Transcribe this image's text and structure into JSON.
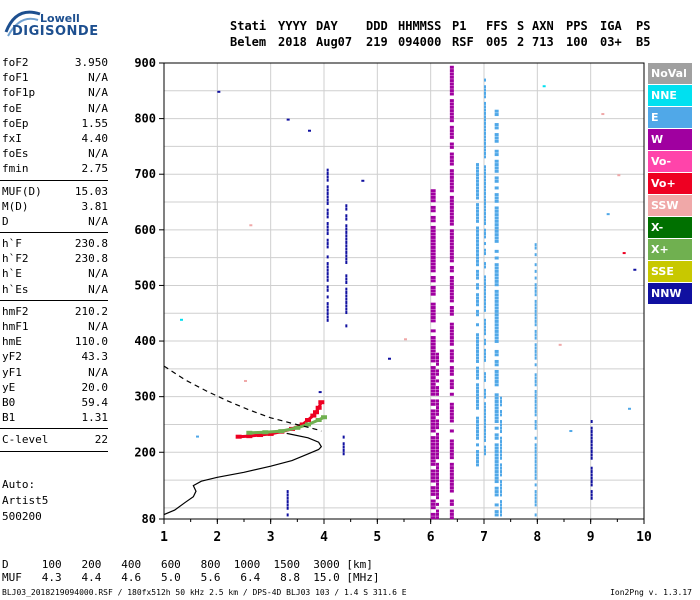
{
  "logo": {
    "top": "Lowell",
    "bottom": "DIGISONDE"
  },
  "header": {
    "labels": [
      "Stati",
      "YYYY",
      "DAY",
      "DDD",
      "HHMMSS",
      "P1",
      "FFS",
      "S",
      "AXN",
      "PPS",
      "IGA",
      "PS"
    ],
    "values": [
      "Belem",
      "2018",
      "Aug07",
      "219",
      "094000",
      "RSF",
      "005",
      "2",
      "713",
      "100",
      "03+",
      "B5"
    ]
  },
  "params_groups": [
    [
      [
        "foF2",
        "3.950"
      ],
      [
        "foF1",
        "N/A"
      ],
      [
        "foF1p",
        "N/A"
      ],
      [
        "foE",
        "N/A"
      ],
      [
        "foEp",
        "1.55"
      ],
      [
        "fxI",
        "4.40"
      ],
      [
        "foEs",
        "N/A"
      ],
      [
        "fmin",
        "2.75"
      ]
    ],
    [
      [
        "MUF(D)",
        "15.03"
      ],
      [
        "M(D)",
        "3.81"
      ],
      [
        "D",
        "N/A"
      ]
    ],
    [
      [
        "h`F",
        "230.8"
      ],
      [
        "h`F2",
        "230.8"
      ],
      [
        "h`E",
        "N/A"
      ],
      [
        "h`Es",
        "N/A"
      ]
    ],
    [
      [
        "hmF2",
        "210.2"
      ],
      [
        "hmF1",
        "N/A"
      ],
      [
        "hmE",
        "110.0"
      ],
      [
        "yF2",
        "43.3"
      ],
      [
        "yF1",
        "N/A"
      ],
      [
        "yE",
        "20.0"
      ],
      [
        "B0",
        "59.4"
      ],
      [
        "B1",
        "1.31"
      ]
    ],
    [
      [
        "C-level",
        "22"
      ]
    ]
  ],
  "auto": [
    "Auto:",
    "Artist5",
    "500200"
  ],
  "legend": [
    {
      "label": "NoVal",
      "color": "#a0a0a0"
    },
    {
      "label": "NNE",
      "color": "#00e0f0"
    },
    {
      "label": "E",
      "color": "#50a8e8"
    },
    {
      "label": "W",
      "color": "#a000a0"
    },
    {
      "label": "Vo-",
      "color": "#ff44aa"
    },
    {
      "label": "Vo+",
      "color": "#ee0022"
    },
    {
      "label": "SSW",
      "color": "#f0a8a8"
    },
    {
      "label": "X-",
      "color": "#007000"
    },
    {
      "label": "X+",
      "color": "#70b050"
    },
    {
      "label": "SSE",
      "color": "#c8c800"
    },
    {
      "label": "NNW",
      "color": "#1010a0"
    }
  ],
  "bottom_table": {
    "d_label": "D",
    "d_values": [
      "100",
      "200",
      "400",
      "600",
      "800",
      "1000",
      "1500",
      "3000"
    ],
    "d_unit": "[km]",
    "muf_label": "MUF",
    "muf_values": [
      "4.3",
      "4.4",
      "4.6",
      "5.0",
      "5.6",
      "6.4",
      "8.8",
      "15.0"
    ],
    "muf_unit": "[MHz]"
  },
  "footer": "BLJ03_2018219094000.RSF / 180fx512h 50 kHz 2.5 km / DPS-4D BLJ03 103 / 1.4 S 311.6 E",
  "version": "Ion2Png v. 1.3.17",
  "chart_data": {
    "type": "scatter",
    "xlim": [
      1,
      10
    ],
    "ylim": [
      80,
      900
    ],
    "x_ticks": [
      1,
      2,
      3,
      4,
      5,
      6,
      7,
      8,
      9,
      10
    ],
    "y_ticks": [
      80,
      200,
      300,
      400,
      500,
      600,
      700,
      800,
      900
    ],
    "grid": true,
    "legend_placement": "right",
    "profile_solid": {
      "x": [
        1.0,
        1.2,
        1.4,
        1.55,
        1.6,
        1.55,
        1.7,
        2.0,
        2.5,
        3.0,
        3.4,
        3.7,
        3.9,
        3.95,
        3.9,
        3.7,
        3.3
      ],
      "y": [
        88,
        96,
        110,
        120,
        130,
        140,
        148,
        155,
        164,
        175,
        185,
        197,
        205,
        210,
        218,
        226,
        234
      ]
    },
    "profile_dashed": {
      "x": [
        1.0,
        1.4,
        1.8,
        2.2,
        2.6,
        3.0,
        3.4,
        3.7,
        3.9,
        3.95
      ],
      "y": [
        355,
        330,
        310,
        292,
        276,
        262,
        252,
        245,
        240,
        238
      ]
    },
    "traces": [
      {
        "color": "#ee0022",
        "x": [
          2.4,
          2.6,
          2.8,
          3.0,
          3.2,
          3.4,
          3.6,
          3.7,
          3.8,
          3.85,
          3.9,
          3.95
        ],
        "y": [
          228,
          229,
          231,
          233,
          237,
          242,
          250,
          258,
          266,
          272,
          280,
          290
        ]
      },
      {
        "color": "#70b050",
        "x": [
          2.6,
          2.9,
          3.2,
          3.5,
          3.7,
          3.9,
          4.0
        ],
        "y": [
          235,
          236,
          238,
          244,
          250,
          258,
          263
        ]
      },
      {
        "color": "#a000a0",
        "x": [
          6.0,
          6.0,
          6.0,
          6.0,
          6.0,
          6.0,
          6.0,
          6.0
        ],
        "y": [
          90,
          200,
          300,
          400,
          500,
          600,
          680,
          900
        ]
      },
      {
        "color": "#a000a0",
        "x": [
          6.35,
          6.35,
          6.35,
          6.35,
          6.35,
          6.35
        ],
        "y": [
          90,
          250,
          400,
          600,
          800,
          900
        ]
      },
      {
        "color": "#50a8e8",
        "x": [
          6.85,
          6.85,
          6.85,
          6.85,
          6.85
        ],
        "y": [
          200,
          300,
          450,
          600,
          700
        ]
      },
      {
        "color": "#50a8e8",
        "x": [
          7.2,
          7.2,
          7.2,
          7.2,
          7.2,
          7.2
        ],
        "y": [
          100,
          200,
          350,
          500,
          650,
          800
        ]
      },
      {
        "color": "#1010a0",
        "x": [
          4.4,
          4.4,
          4.4,
          4.4
        ],
        "y": [
          450,
          520,
          600,
          650
        ]
      }
    ]
  }
}
